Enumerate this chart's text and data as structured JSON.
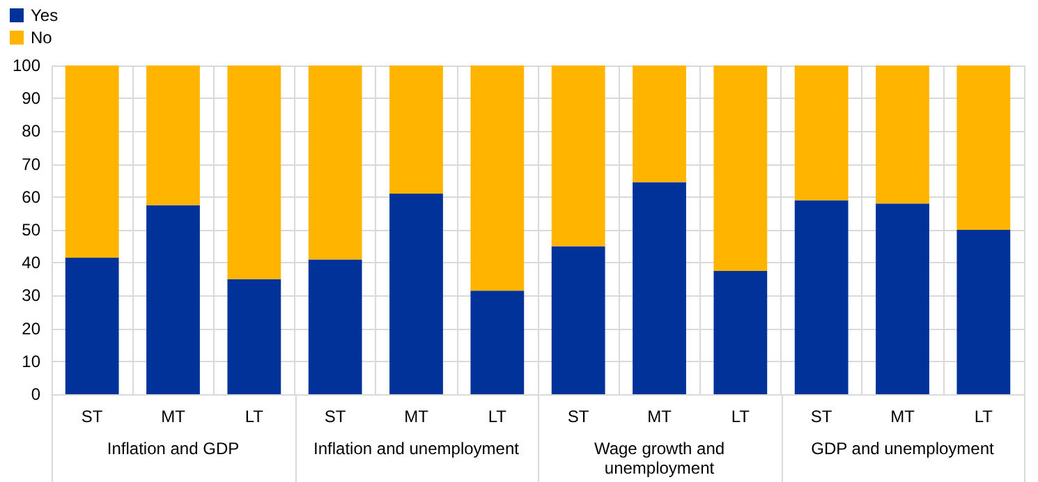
{
  "chart_data": {
    "type": "bar",
    "stacked": true,
    "categories": [
      "ST",
      "MT",
      "LT",
      "ST",
      "MT",
      "LT",
      "ST",
      "MT",
      "LT",
      "ST",
      "MT",
      "LT"
    ],
    "annotations": [
      "Inflation and GDP",
      "Inflation and unemployment",
      "Wage growth and\nunemployment",
      "GDP and unemployment"
    ],
    "series": [
      {
        "name": "Yes",
        "color": "#003299",
        "values": [
          41.5,
          57.5,
          35,
          41,
          61,
          31.5,
          45,
          64.5,
          37.5,
          59,
          58,
          50
        ]
      },
      {
        "name": "No",
        "color": "#ffb400",
        "values": [
          58.5,
          42.5,
          65,
          59,
          39,
          68.5,
          55,
          35.5,
          62.5,
          41,
          42,
          50
        ]
      }
    ],
    "ylim": [
      0,
      100
    ],
    "yticks": [
      0,
      10,
      20,
      30,
      40,
      50,
      60,
      70,
      80,
      90,
      100
    ],
    "grid": true,
    "legend": "top left"
  }
}
